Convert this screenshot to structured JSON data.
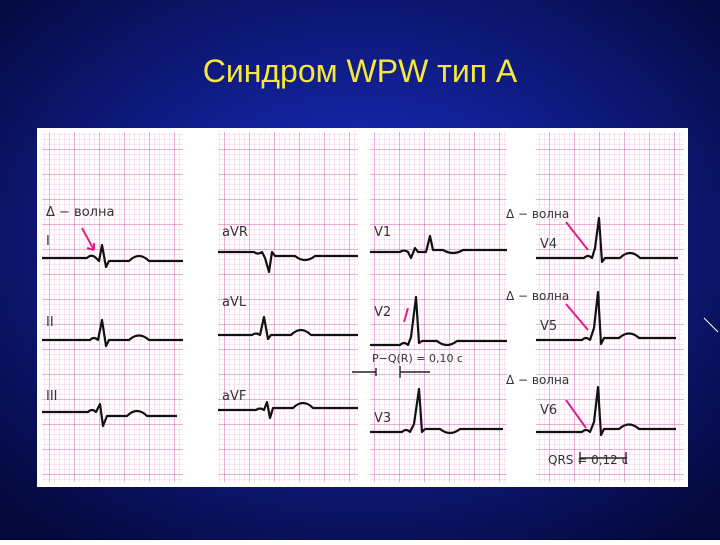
{
  "title": "Синдром WPW тип А",
  "leads": [
    "I",
    "II",
    "III",
    "aVR",
    "aVL",
    "aVF",
    "V1",
    "V2",
    "V3",
    "V4",
    "V5",
    "V6"
  ],
  "delta_labels": [
    "Δ − волна",
    "Δ − волна",
    "Δ − волна",
    "Δ − волна"
  ],
  "pq_label": "P−Q(R) = 0,10 c",
  "qrs_label": "QRS = 0,12 c"
}
